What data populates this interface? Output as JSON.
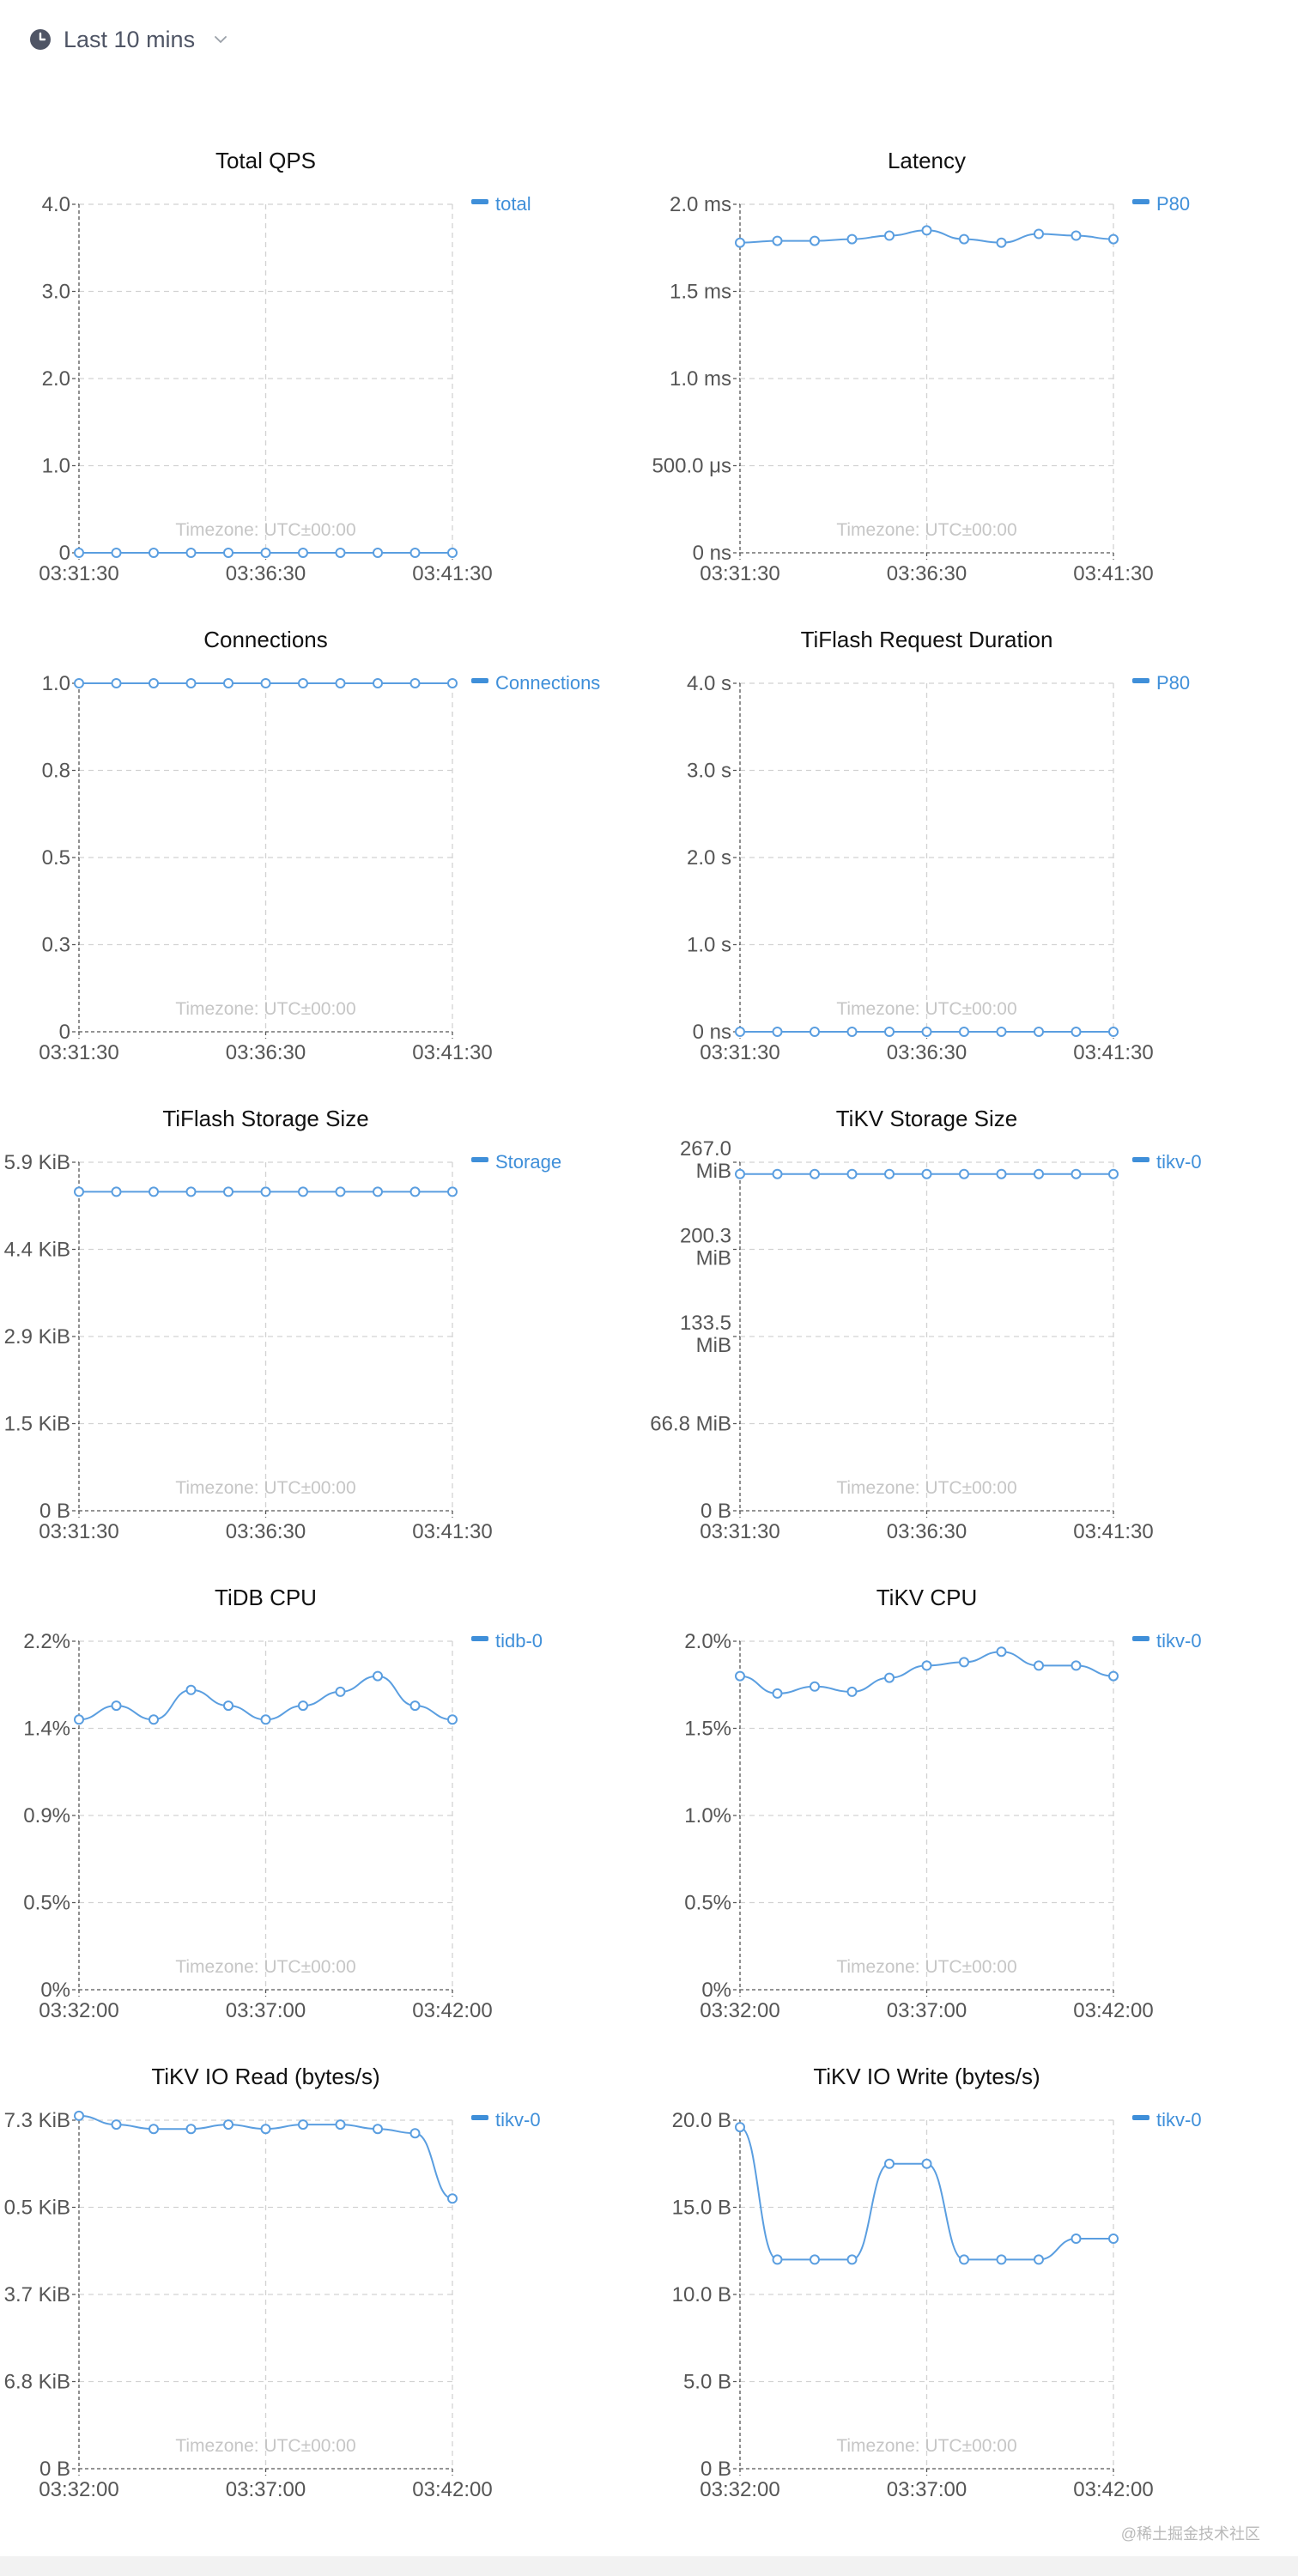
{
  "toolbar": {
    "time_range_label": "Last 10 mins",
    "icons": {
      "clock": "clock-icon",
      "dropdown": "chevron-down-icon"
    }
  },
  "colors": {
    "series": "#5a9ee0",
    "legend": "#3f8fd9",
    "grid": "#d2d2d2",
    "axis": "#555555",
    "timezone_text": "#c6c6c6"
  },
  "chart_data": [
    {
      "id": "total-qps",
      "type": "line",
      "title": "Total QPS",
      "xticks": [
        "03:31:30",
        "03:36:30",
        "03:41:30"
      ],
      "yticks": [
        "0",
        "1.0",
        "2.0",
        "3.0",
        "4.0"
      ],
      "ylim": [
        0,
        4
      ],
      "timezone": "Timezone: UTC±00:00",
      "grid": true,
      "legend_position": "right",
      "series": [
        {
          "name": "total",
          "values": [
            0,
            0,
            0,
            0,
            0,
            0,
            0,
            0,
            0,
            0,
            0
          ]
        }
      ]
    },
    {
      "id": "latency",
      "type": "line",
      "title": "Latency",
      "xticks": [
        "03:31:30",
        "03:36:30",
        "03:41:30"
      ],
      "yticks": [
        "0 ns",
        "500.0 μs",
        "1.0 ms",
        "1.5 ms",
        "2.0 ms"
      ],
      "ylim": [
        0,
        2
      ],
      "y_unit": "ms",
      "timezone": "Timezone: UTC±00:00",
      "grid": true,
      "legend_position": "right",
      "series": [
        {
          "name": "P80",
          "values": [
            1.78,
            1.79,
            1.79,
            1.8,
            1.82,
            1.85,
            1.8,
            1.78,
            1.83,
            1.82,
            1.8
          ]
        }
      ]
    },
    {
      "id": "connections",
      "type": "line",
      "title": "Connections",
      "xticks": [
        "03:31:30",
        "03:36:30",
        "03:41:30"
      ],
      "yticks": [
        "0",
        "0.3",
        "0.5",
        "0.8",
        "1.0"
      ],
      "ylim": [
        0,
        1
      ],
      "timezone": "Timezone: UTC±00:00",
      "grid": true,
      "legend_position": "right",
      "series": [
        {
          "name": "Connections",
          "values": [
            1,
            1,
            1,
            1,
            1,
            1,
            1,
            1,
            1,
            1,
            1
          ]
        }
      ]
    },
    {
      "id": "tiflash-request-duration",
      "type": "line",
      "title": "TiFlash Request Duration",
      "xticks": [
        "03:31:30",
        "03:36:30",
        "03:41:30"
      ],
      "yticks": [
        "0 ns",
        "1.0 s",
        "2.0 s",
        "3.0 s",
        "4.0 s"
      ],
      "ylim": [
        0,
        4
      ],
      "y_unit": "s",
      "timezone": "Timezone: UTC±00:00",
      "grid": true,
      "legend_position": "right",
      "series": [
        {
          "name": "P80",
          "values": [
            0,
            0,
            0,
            0,
            0,
            0,
            0,
            0,
            0,
            0,
            0
          ]
        }
      ]
    },
    {
      "id": "tiflash-storage-size",
      "type": "line",
      "title": "TiFlash Storage Size",
      "xticks": [
        "03:31:30",
        "03:36:30",
        "03:41:30"
      ],
      "yticks": [
        "0 B",
        "1.5 KiB",
        "2.9 KiB",
        "4.4 KiB",
        "5.9 KiB"
      ],
      "ylim": [
        0,
        5.9
      ],
      "y_unit": "KiB",
      "timezone": "Timezone: UTC±00:00",
      "grid": true,
      "legend_position": "right",
      "series": [
        {
          "name": "Storage",
          "values": [
            5.4,
            5.4,
            5.4,
            5.4,
            5.4,
            5.4,
            5.4,
            5.4,
            5.4,
            5.4,
            5.4
          ]
        }
      ]
    },
    {
      "id": "tikv-storage-size",
      "type": "line",
      "title": "TiKV Storage Size",
      "xticks": [
        "03:31:30",
        "03:36:30",
        "03:41:30"
      ],
      "yticks": [
        "0 B",
        "66.8 MiB",
        "133.5 MiB",
        "200.3 MiB",
        "267.0 MiB"
      ],
      "ylim": [
        0,
        267
      ],
      "y_unit": "MiB",
      "timezone": "Timezone: UTC±00:00",
      "grid": true,
      "legend_position": "right",
      "series": [
        {
          "name": "tikv-0",
          "values": [
            258,
            258,
            258,
            258,
            258,
            258,
            258,
            258,
            258,
            258,
            258
          ]
        }
      ]
    },
    {
      "id": "tidb-cpu",
      "type": "line",
      "title": "TiDB CPU",
      "xticks": [
        "03:32:00",
        "03:37:00",
        "03:42:00"
      ],
      "yticks": [
        "0%",
        "0.5%",
        "0.9%",
        "1.4%",
        "2.2%"
      ],
      "ylim": [
        0,
        2.0
      ],
      "y_unit": "%",
      "timezone": "Timezone: UTC±00:00",
      "grid": true,
      "legend_position": "right",
      "series": [
        {
          "name": "tidb-0",
          "values": [
            1.55,
            1.63,
            1.55,
            1.72,
            1.63,
            1.55,
            1.63,
            1.71,
            1.8,
            1.63,
            1.55
          ]
        }
      ]
    },
    {
      "id": "tikv-cpu",
      "type": "line",
      "title": "TiKV CPU",
      "xticks": [
        "03:32:00",
        "03:37:00",
        "03:42:00"
      ],
      "yticks": [
        "0%",
        "0.5%",
        "1.0%",
        "1.5%",
        "2.0%"
      ],
      "ylim": [
        0,
        2.0
      ],
      "y_unit": "%",
      "timezone": "Timezone: UTC±00:00",
      "grid": true,
      "legend_position": "right",
      "series": [
        {
          "name": "tikv-0",
          "values": [
            1.8,
            1.7,
            1.74,
            1.71,
            1.79,
            1.86,
            1.88,
            1.94,
            1.86,
            1.86,
            1.8
          ]
        }
      ]
    },
    {
      "id": "tikv-io-read",
      "type": "line",
      "title": "TiKV IO Read (bytes/s)",
      "xticks": [
        "03:32:00",
        "03:37:00",
        "03:42:00"
      ],
      "yticks": [
        "0 B",
        "6.8 KiB",
        "3.7 KiB",
        "0.5 KiB",
        "7.3 KiB"
      ],
      "ylim": [
        0,
        4
      ],
      "timezone": "Timezone: UTC±00:00",
      "grid": true,
      "legend_position": "right",
      "series": [
        {
          "name": "tikv-0",
          "values": [
            4.05,
            3.95,
            3.9,
            3.9,
            3.95,
            3.9,
            3.95,
            3.95,
            3.9,
            3.85,
            3.1
          ]
        }
      ]
    },
    {
      "id": "tikv-io-write",
      "type": "line",
      "title": "TiKV IO Write (bytes/s)",
      "xticks": [
        "03:32:00",
        "03:37:00",
        "03:42:00"
      ],
      "yticks": [
        "0 B",
        "5.0 B",
        "10.0 B",
        "15.0 B",
        "20.0 B"
      ],
      "ylim": [
        0,
        20
      ],
      "y_unit": "B",
      "timezone": "Timezone: UTC±00:00",
      "grid": true,
      "legend_position": "right",
      "series": [
        {
          "name": "tikv-0",
          "values": [
            19.6,
            12.0,
            12.0,
            12.0,
            17.5,
            17.5,
            12.0,
            12.0,
            12.0,
            13.2,
            13.2
          ]
        }
      ]
    }
  ],
  "footer": {
    "watermark": "@稀土掘金技术社区"
  }
}
